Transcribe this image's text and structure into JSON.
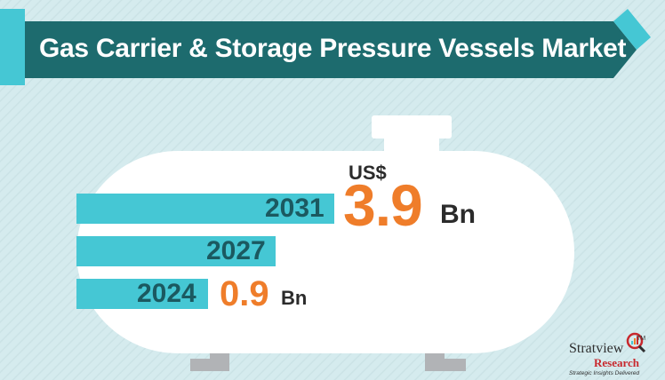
{
  "title": "Gas Carrier & Storage Pressure Vessels Market",
  "chart_data": {
    "type": "bar",
    "orientation": "horizontal",
    "categories": [
      "2031",
      "2027",
      "2024"
    ],
    "values": [
      3.9,
      null,
      0.9
    ],
    "value_labels": {
      "2031": {
        "prefix": "US$",
        "value": "3.9",
        "unit": "Bn"
      },
      "2024": {
        "value": "0.9",
        "unit": "Bn"
      }
    }
  },
  "logo": {
    "name": "Stratview",
    "tm": "TM",
    "sub": "Research",
    "tagline": "Strategic Insights Delivered"
  },
  "colors": {
    "background": "#d5ebee",
    "ribbon": "#1d6b6e",
    "ribbon_accent": "#45c7d4",
    "bar": "#45c7d4",
    "tank": "#ffffff",
    "legs": "#b1b3b6",
    "year_text": "#1b5960",
    "value": "#ef7d2a"
  }
}
